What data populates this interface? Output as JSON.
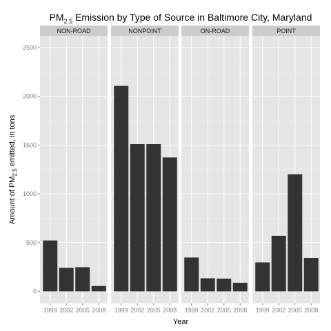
{
  "chart_data": {
    "type": "bar",
    "title_main": "PM",
    "title_sub": "2.5",
    "title_rest": " Emission by Type of Source in Baltimore City, Maryland",
    "xlabel": "Year",
    "ylabel_main": "Amount of PM",
    "ylabel_sub": "2.5",
    "ylabel_rest": " emitted, in tons",
    "ylim": [
      0,
      2650
    ],
    "yticks": [
      0,
      500,
      1000,
      1500,
      2000,
      2500
    ],
    "ytick_labels": [
      "0",
      "500",
      "1000",
      "1500",
      "2000",
      "2500"
    ],
    "categories": [
      "1999",
      "2002",
      "2005",
      "2008"
    ],
    "grid": true,
    "bar_color": "#333333",
    "panel_bg": "#e5e5e5",
    "strip_bg": "#cccccc",
    "facets": [
      {
        "name": "NON-ROAD",
        "values": [
          522,
          241,
          248,
          55
        ]
      },
      {
        "name": "NONPOINT",
        "values": [
          2107,
          1510,
          1510,
          1373
        ]
      },
      {
        "name": "ON-ROAD",
        "values": [
          347,
          134,
          130,
          88
        ]
      },
      {
        "name": "POINT",
        "values": [
          297,
          570,
          1201,
          343
        ]
      }
    ]
  }
}
